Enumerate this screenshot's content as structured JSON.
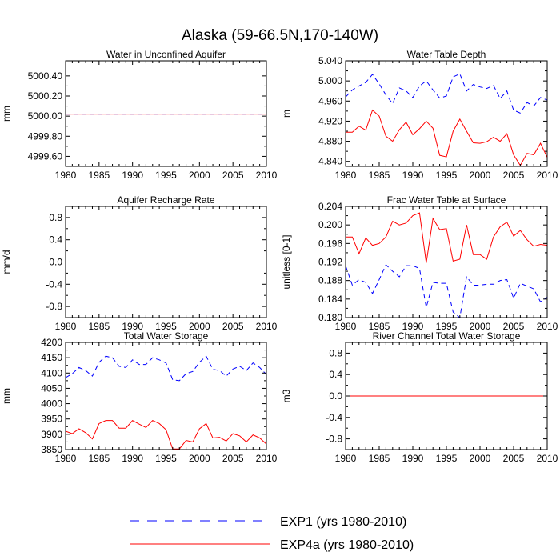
{
  "figure": {
    "title": "Alaska (59-66.5N,170-140W)",
    "colors": {
      "exp1": "#0000ff",
      "exp4a": "#ff0000",
      "axis": "#000000"
    },
    "legend": [
      {
        "label": "EXP1 (yrs 1980-2010)",
        "color": "#0000ff",
        "style": "dashed"
      },
      {
        "label": "EXP4a (yrs 1980-2010)",
        "color": "#ff0000",
        "style": "solid"
      }
    ]
  },
  "chart_data": [
    {
      "type": "line",
      "title": "Water in Unconfined Aquifer",
      "ylabel": "mm",
      "xlim": [
        1980,
        2010
      ],
      "ylim": [
        4999.5,
        5000.55
      ],
      "xticks": [
        "1980",
        "1985",
        "1990",
        "1995",
        "2000",
        "2005",
        "2010"
      ],
      "yticks": [
        {
          "v": 5000.4,
          "label": "5000.40"
        },
        {
          "v": 5000.2,
          "label": "5000.20"
        },
        {
          "v": 5000.0,
          "label": "5000.00"
        },
        {
          "v": 4999.8,
          "label": "4999.80"
        },
        {
          "v": 4999.6,
          "label": "4999.60"
        }
      ],
      "x": [
        1980,
        2010
      ],
      "series": [
        {
          "name": "EXP1 (yrs 1980-2010)",
          "values": [
            5000.02,
            5000.02
          ]
        },
        {
          "name": "EXP4a (yrs 1980-2010)",
          "values": [
            5000.02,
            5000.02
          ]
        }
      ]
    },
    {
      "type": "line",
      "title": "Water Table Depth",
      "ylabel": "m",
      "xlim": [
        1980,
        2010
      ],
      "ylim": [
        4.83,
        5.04
      ],
      "xticks": [
        "1980",
        "1985",
        "1990",
        "1995",
        "2000",
        "2005",
        "2010"
      ],
      "yticks": [
        {
          "v": 5.04,
          "label": "5.040"
        },
        {
          "v": 5.0,
          "label": "5.000"
        },
        {
          "v": 4.96,
          "label": "4.960"
        },
        {
          "v": 4.92,
          "label": "4.920"
        },
        {
          "v": 4.88,
          "label": "4.880"
        },
        {
          "v": 4.84,
          "label": "4.840"
        }
      ],
      "x": [
        1980,
        1981,
        1982,
        1983,
        1984,
        1985,
        1986,
        1987,
        1988,
        1989,
        1990,
        1991,
        1992,
        1993,
        1994,
        1995,
        1996,
        1997,
        1998,
        1999,
        2000,
        2001,
        2002,
        2003,
        2004,
        2005,
        2006,
        2007,
        2008,
        2009,
        2010
      ],
      "series": [
        {
          "name": "EXP1 (yrs 1980-2010)",
          "values": [
            4.968,
            4.982,
            4.99,
            4.997,
            5.013,
            4.994,
            4.972,
            4.955,
            4.986,
            4.98,
            4.967,
            4.99,
            5.0,
            4.982,
            4.966,
            4.97,
            5.008,
            5.014,
            4.98,
            4.993,
            4.988,
            4.985,
            4.991,
            4.965,
            4.98,
            4.942,
            4.936,
            4.957,
            4.95,
            4.967,
            4.962
          ]
        },
        {
          "name": "EXP4a (yrs 1980-2010)",
          "values": [
            4.898,
            4.898,
            4.91,
            4.902,
            4.942,
            4.93,
            4.89,
            4.88,
            4.903,
            4.918,
            4.893,
            4.905,
            4.92,
            4.906,
            4.852,
            4.849,
            4.9,
            4.924,
            4.9,
            4.877,
            4.876,
            4.879,
            4.888,
            4.88,
            4.895,
            4.853,
            4.832,
            4.856,
            4.853,
            4.876,
            4.848
          ]
        }
      ]
    },
    {
      "type": "line",
      "title": "Aquifer Recharge Rate",
      "ylabel": "mm/d",
      "xlim": [
        1980,
        2010
      ],
      "ylim": [
        -1.0,
        1.0
      ],
      "xticks": [
        "1980",
        "1985",
        "1990",
        "1995",
        "2000",
        "2005",
        "2010"
      ],
      "yticks": [
        {
          "v": 0.8,
          "label": "0.8"
        },
        {
          "v": 0.4,
          "label": "0.4"
        },
        {
          "v": 0.0,
          "label": "0.0"
        },
        {
          "v": -0.4,
          "label": "-0.4"
        },
        {
          "v": -0.8,
          "label": "-0.8"
        }
      ],
      "x": [
        1980,
        2010
      ],
      "series": [
        {
          "name": "EXP1 (yrs 1980-2010)",
          "values": [
            0.0,
            0.0
          ]
        },
        {
          "name": "EXP4a (yrs 1980-2010)",
          "values": [
            0.0,
            0.0
          ]
        }
      ]
    },
    {
      "type": "line",
      "title": "Frac Water Table at Surface",
      "ylabel": "unitless [0-1]",
      "xlim": [
        1980,
        2010
      ],
      "ylim": [
        0.18,
        0.204
      ],
      "xticks": [
        "1980",
        "1985",
        "1990",
        "1995",
        "2000",
        "2005",
        "2010"
      ],
      "yticks": [
        {
          "v": 0.204,
          "label": "0.204"
        },
        {
          "v": 0.2,
          "label": "0.200"
        },
        {
          "v": 0.196,
          "label": "0.196"
        },
        {
          "v": 0.192,
          "label": "0.192"
        },
        {
          "v": 0.188,
          "label": "0.188"
        },
        {
          "v": 0.184,
          "label": "0.184"
        },
        {
          "v": 0.18,
          "label": "0.180"
        }
      ],
      "x": [
        1980,
        1981,
        1982,
        1983,
        1984,
        1985,
        1986,
        1987,
        1988,
        1989,
        1990,
        1991,
        1992,
        1993,
        1994,
        1995,
        1996,
        1997,
        1998,
        1999,
        2000,
        2001,
        2002,
        2003,
        2004,
        2005,
        2006,
        2007,
        2008,
        2009,
        2010
      ],
      "series": [
        {
          "name": "EXP1 (yrs 1980-2010)",
          "values": [
            0.1912,
            0.187,
            0.1882,
            0.1876,
            0.1852,
            0.1882,
            0.1914,
            0.19,
            0.1888,
            0.1912,
            0.1912,
            0.1906,
            0.1822,
            0.1876,
            0.1874,
            0.1874,
            0.1812,
            0.18,
            0.1888,
            0.187,
            0.187,
            0.1872,
            0.1872,
            0.188,
            0.1882,
            0.1842,
            0.1874,
            0.1868,
            0.1862,
            0.1834,
            0.1844
          ]
        },
        {
          "name": "EXP4a (yrs 1980-2010)",
          "values": [
            0.1974,
            0.1974,
            0.1938,
            0.1972,
            0.1956,
            0.196,
            0.1974,
            0.2008,
            0.2,
            0.2004,
            0.202,
            0.2026,
            0.1918,
            0.2014,
            0.199,
            0.1992,
            0.1922,
            0.1926,
            0.2,
            0.1936,
            0.1936,
            0.1926,
            0.1974,
            0.1996,
            0.2006,
            0.1976,
            0.1988,
            0.1968,
            0.1954,
            0.1958,
            0.1956
          ]
        }
      ]
    },
    {
      "type": "line",
      "title": "Total Water Storage",
      "ylabel": "mm",
      "xlim": [
        1980,
        2010
      ],
      "ylim": [
        3850,
        4200
      ],
      "xticks": [
        "1980",
        "1985",
        "1990",
        "1995",
        "2000",
        "2005",
        "2010"
      ],
      "yticks": [
        {
          "v": 4200,
          "label": "4200"
        },
        {
          "v": 4150,
          "label": "4150"
        },
        {
          "v": 4100,
          "label": "4100"
        },
        {
          "v": 4050,
          "label": "4050"
        },
        {
          "v": 4000,
          "label": "4000"
        },
        {
          "v": 3950,
          "label": "3950"
        },
        {
          "v": 3900,
          "label": "3900"
        },
        {
          "v": 3850,
          "label": "3850"
        }
      ],
      "x": [
        1980,
        1981,
        1982,
        1983,
        1984,
        1985,
        1986,
        1987,
        1988,
        1989,
        1990,
        1991,
        1992,
        1993,
        1994,
        1995,
        1996,
        1997,
        1998,
        1999,
        2000,
        2001,
        2002,
        2003,
        2004,
        2005,
        2006,
        2007,
        2008,
        2009,
        2010
      ],
      "series": [
        {
          "name": "EXP1 (yrs 1980-2010)",
          "values": [
            4085,
            4098,
            4118,
            4108,
            4090,
            4135,
            4155,
            4150,
            4122,
            4118,
            4143,
            4128,
            4128,
            4150,
            4143,
            4133,
            4078,
            4075,
            4098,
            4105,
            4135,
            4155,
            4112,
            4108,
            4090,
            4113,
            4122,
            4108,
            4133,
            4118,
            4095
          ]
        },
        {
          "name": "EXP4a (yrs 1980-2010)",
          "values": [
            3910,
            3902,
            3918,
            3905,
            3885,
            3935,
            3945,
            3945,
            3920,
            3920,
            3945,
            3933,
            3922,
            3945,
            3935,
            3915,
            3852,
            3852,
            3880,
            3875,
            3918,
            3935,
            3888,
            3890,
            3878,
            3902,
            3895,
            3875,
            3898,
            3888,
            3868
          ]
        }
      ]
    },
    {
      "type": "line",
      "title": "River Channel Total Water Storage",
      "ylabel": "m3",
      "xlim": [
        1980,
        2010
      ],
      "ylim": [
        -1.0,
        1.0
      ],
      "xticks": [
        "1980",
        "1985",
        "1990",
        "1995",
        "2000",
        "2005",
        "2010"
      ],
      "yticks": [
        {
          "v": 0.8,
          "label": "0.8"
        },
        {
          "v": 0.4,
          "label": "0.4"
        },
        {
          "v": 0.0,
          "label": "0.0"
        },
        {
          "v": -0.4,
          "label": "-0.4"
        },
        {
          "v": -0.8,
          "label": "-0.8"
        }
      ],
      "x": [
        1980,
        2010
      ],
      "series": [
        {
          "name": "EXP1 (yrs 1980-2010)",
          "values": [
            0.0,
            0.0
          ]
        },
        {
          "name": "EXP4a (yrs 1980-2010)",
          "values": [
            0.0,
            0.0
          ]
        }
      ]
    }
  ]
}
